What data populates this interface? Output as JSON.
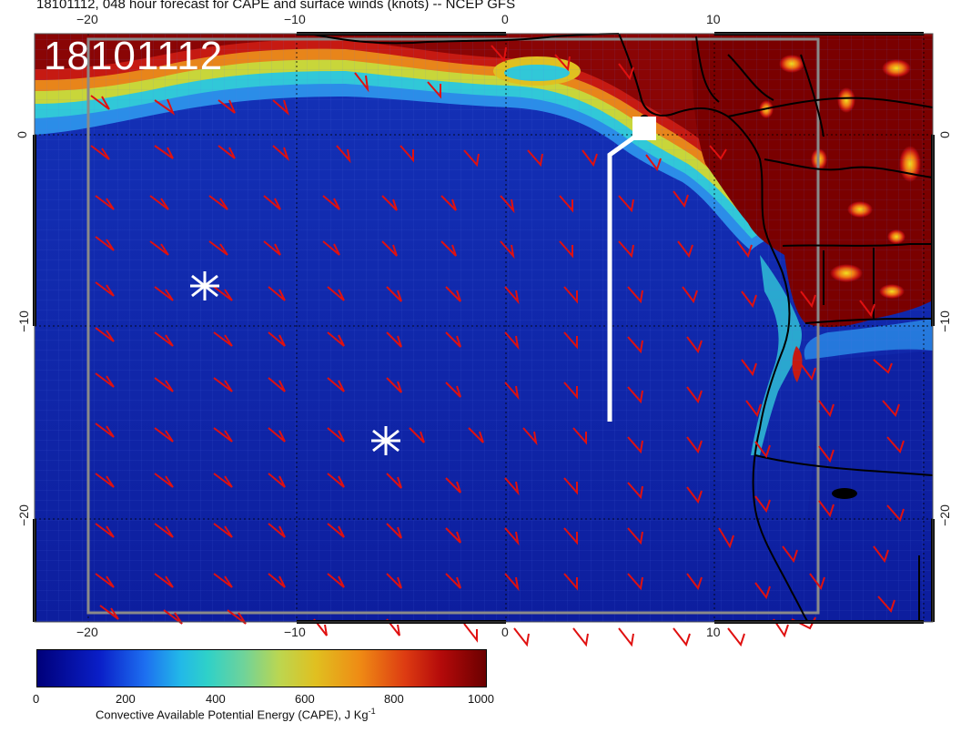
{
  "title": "18101112, 048 hour forecast for CAPE and surface winds (knots) -- NCEP GFS",
  "stamp": "18101112",
  "axes": {
    "x_ticks": [
      "−20",
      "−10",
      "0",
      "10"
    ],
    "y_ticks_left": [
      "0",
      "−10",
      "−20"
    ],
    "y_ticks_right": [
      "0",
      "−10",
      "−20"
    ]
  },
  "colorbar": {
    "labels": [
      "0",
      "200",
      "400",
      "600",
      "800",
      "1000"
    ],
    "title": "Convective Available Potential Energy (CAPE), J Kg",
    "title_sup": "-1"
  },
  "colors": {
    "ocean_low": "#0c1a9a",
    "wind_barb": "#e01010",
    "track": "#ffffff",
    "land_high": "#7a0000"
  },
  "markers": [
    {
      "type": "asterisk",
      "name": "asterisk-icon"
    },
    {
      "type": "asterisk",
      "name": "asterisk-icon"
    },
    {
      "type": "square",
      "name": "square-marker"
    }
  ]
}
